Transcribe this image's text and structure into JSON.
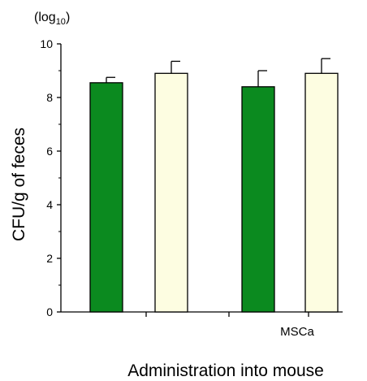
{
  "chart_data": {
    "type": "bar",
    "unit_label": "(log",
    "unit_sub": "10",
    "unit_close": ")",
    "ylabel": "CFU/g of feces",
    "xlabel": "Administration into mouse",
    "ylim": [
      0,
      10
    ],
    "yticks": [
      "0",
      "2",
      "4",
      "6",
      "8",
      "10"
    ],
    "ytick_values": [
      0,
      2,
      4,
      6,
      8,
      10
    ],
    "group_labels": [
      "",
      "MSCa"
    ],
    "grid": false,
    "bars": [
      {
        "group": 0,
        "value": 8.55,
        "error": 0.2,
        "color": "#0b8a1f"
      },
      {
        "group": 0,
        "value": 8.9,
        "error": 0.45,
        "color": "#fdfde1"
      },
      {
        "group": 1,
        "value": 8.4,
        "error": 0.6,
        "color": "#0b8a1f"
      },
      {
        "group": 1,
        "value": 8.9,
        "error": 0.55,
        "color": "#fdfde1"
      }
    ]
  }
}
